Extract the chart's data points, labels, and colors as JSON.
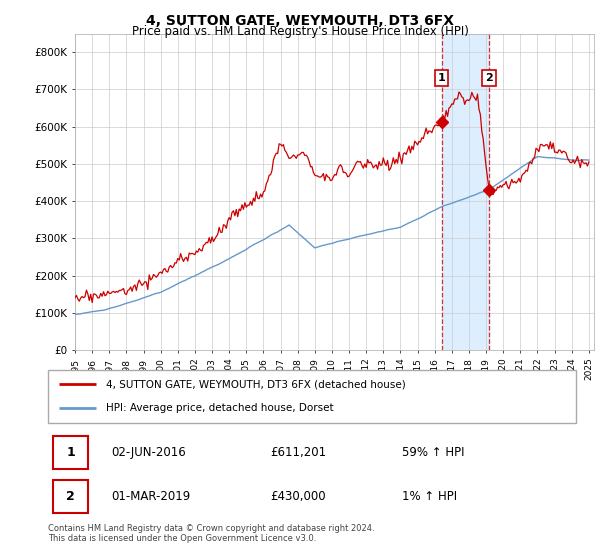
{
  "title": "4, SUTTON GATE, WEYMOUTH, DT3 6FX",
  "subtitle": "Price paid vs. HM Land Registry's House Price Index (HPI)",
  "ylim": [
    0,
    850000
  ],
  "yticks": [
    0,
    100000,
    200000,
    300000,
    400000,
    500000,
    600000,
    700000,
    800000
  ],
  "ytick_labels": [
    "£0",
    "£100K",
    "£200K",
    "£300K",
    "£400K",
    "£500K",
    "£600K",
    "£700K",
    "£800K"
  ],
  "point1_date": "02-JUN-2016",
  "point1_value": 611201,
  "point1_label": "59% ↑ HPI",
  "point1_year": 2016.417,
  "point2_date": "01-MAR-2019",
  "point2_value": 430000,
  "point2_label": "1% ↑ HPI",
  "point2_year": 2019.167,
  "legend_line1": "4, SUTTON GATE, WEYMOUTH, DT3 6FX (detached house)",
  "legend_line2": "HPI: Average price, detached house, Dorset",
  "footer": "Contains HM Land Registry data © Crown copyright and database right 2024.\nThis data is licensed under the Open Government Licence v3.0.",
  "line_color_red": "#cc0000",
  "line_color_blue": "#6699cc",
  "shade_color": "#ddeeff",
  "grid_color": "#cccccc"
}
